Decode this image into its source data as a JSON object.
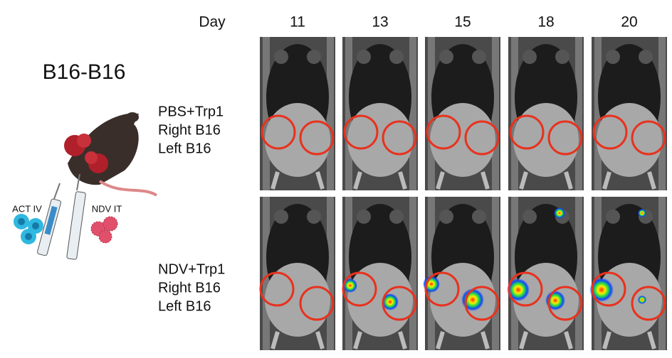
{
  "figure": {
    "title": "B16-B16",
    "day_label": "Day",
    "days": [
      "11",
      "13",
      "15",
      "18",
      "20"
    ],
    "rows": [
      {
        "lines": [
          "PBS+Trp1",
          "Right B16",
          "Left B16"
        ]
      },
      {
        "lines": [
          "NDV+Trp1",
          "Right B16",
          "Left B16"
        ]
      }
    ],
    "illustration": {
      "act_label": "ACT IV",
      "ndv_label": "NDV IT"
    }
  }
}
